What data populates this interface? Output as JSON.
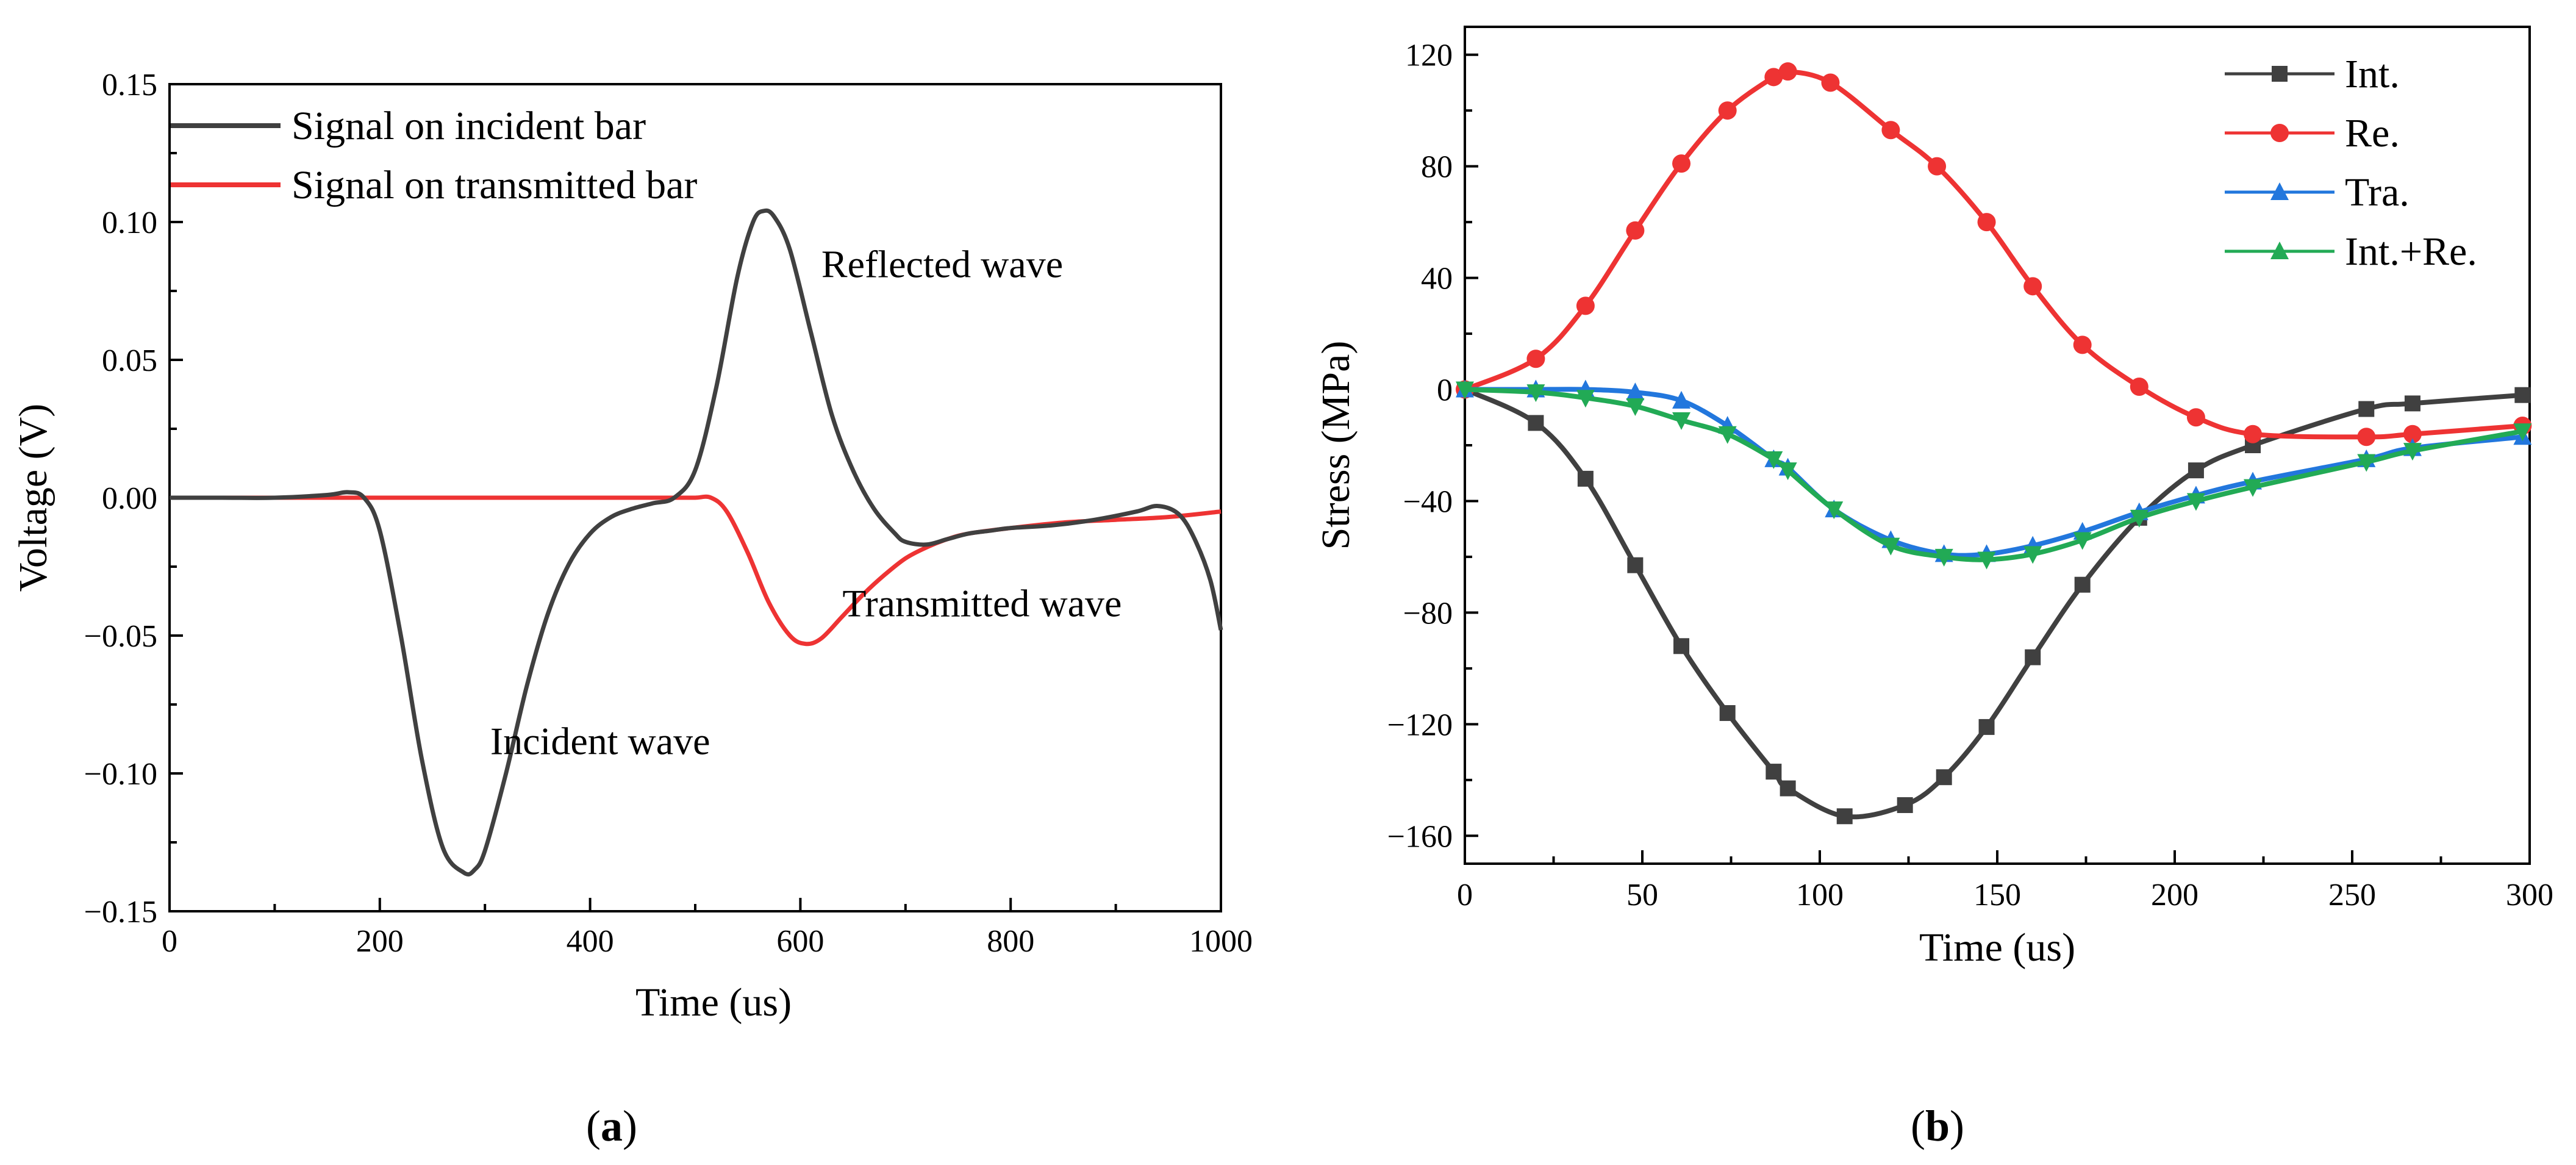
{
  "captions": {
    "a": "a",
    "b": "b"
  },
  "chart_data": [
    {
      "type": "line",
      "panel": "a",
      "xlabel": "Time (us)",
      "ylabel": "Voltage (V)",
      "xlim": [
        0,
        1000
      ],
      "ylim": [
        -0.15,
        0.15
      ],
      "xticks": [
        0,
        200,
        400,
        600,
        800,
        1000
      ],
      "yticks": [
        -0.15,
        -0.1,
        -0.05,
        0.0,
        0.05,
        0.1,
        0.15
      ],
      "xtick_labels": [
        "0",
        "200",
        "400",
        "600",
        "800",
        "1000"
      ],
      "ytick_labels": [
        "−0.15",
        "−0.10",
        "−0.05",
        "0.00",
        "0.05",
        "0.10",
        "0.15"
      ],
      "legend_position": "top-left",
      "series": [
        {
          "name": "Signal on incident bar",
          "color": "#404040",
          "x": [
            0,
            50,
            100,
            150,
            170,
            185,
            200,
            220,
            240,
            260,
            280,
            290,
            300,
            320,
            340,
            360,
            380,
            400,
            420,
            440,
            460,
            480,
            500,
            520,
            540,
            555,
            565,
            575,
            590,
            610,
            630,
            650,
            670,
            690,
            700,
            720,
            740,
            760,
            780,
            800,
            840,
            880,
            920,
            940,
            960,
            975,
            990,
            1000
          ],
          "y": [
            0.0,
            0.0,
            0.0,
            0.001,
            0.002,
            0.0,
            -0.012,
            -0.05,
            -0.095,
            -0.127,
            -0.136,
            -0.135,
            -0.128,
            -0.1,
            -0.068,
            -0.042,
            -0.024,
            -0.013,
            -0.007,
            -0.004,
            -0.002,
            0.0,
            0.01,
            0.04,
            0.08,
            0.1,
            0.104,
            0.102,
            0.09,
            0.06,
            0.03,
            0.01,
            -0.004,
            -0.013,
            -0.016,
            -0.017,
            -0.015,
            -0.013,
            -0.012,
            -0.011,
            -0.01,
            -0.008,
            -0.005,
            -0.003,
            -0.006,
            -0.015,
            -0.03,
            -0.048
          ]
        },
        {
          "name": "Signal on transmitted bar",
          "color": "#ee3333",
          "x": [
            0,
            100,
            200,
            300,
            400,
            480,
            500,
            515,
            530,
            550,
            570,
            590,
            605,
            620,
            640,
            660,
            680,
            700,
            720,
            740,
            760,
            800,
            850,
            900,
            950,
            1000
          ],
          "y": [
            0.0,
            0.0,
            0.0,
            0.0,
            0.0,
            0.0,
            0.0,
            0.0,
            -0.005,
            -0.02,
            -0.038,
            -0.05,
            -0.053,
            -0.051,
            -0.043,
            -0.035,
            -0.028,
            -0.022,
            -0.018,
            -0.015,
            -0.013,
            -0.011,
            -0.009,
            -0.008,
            -0.007,
            -0.005
          ]
        }
      ],
      "annotations": [
        {
          "text": "Reflected wave",
          "x": 620,
          "y": 0.08
        },
        {
          "text": "Transmitted wave",
          "x": 640,
          "y": -0.043
        },
        {
          "text": "Incident wave",
          "x": 305,
          "y": -0.093
        }
      ]
    },
    {
      "type": "line",
      "panel": "b",
      "xlabel": "Time (us)",
      "ylabel": "Stress (MPa)",
      "xlim": [
        0,
        300
      ],
      "ylim": [
        -170,
        130
      ],
      "xticks": [
        0,
        50,
        100,
        150,
        200,
        250,
        300
      ],
      "yticks": [
        -160,
        -120,
        -80,
        -40,
        0,
        40,
        80,
        120
      ],
      "xtick_labels": [
        "0",
        "50",
        "100",
        "150",
        "200",
        "250",
        "300"
      ],
      "ytick_labels": [
        "−160",
        "−120",
        "−80",
        "−40",
        "0",
        "40",
        "80",
        "120"
      ],
      "legend_position": "top-right",
      "series": [
        {
          "name": "Int.",
          "color": "#404040",
          "marker": "square",
          "x": [
            0,
            20,
            34,
            48,
            61,
            74,
            87,
            91,
            107,
            124,
            135,
            147,
            160,
            174,
            190,
            206,
            222,
            254,
            267,
            298
          ],
          "y": [
            0,
            -12,
            -32,
            -63,
            -92,
            -116,
            -137,
            -143,
            -153,
            -149,
            -139,
            -121,
            -96,
            -70,
            -46,
            -29,
            -20,
            -7,
            -5,
            -2
          ]
        },
        {
          "name": "Re.",
          "color": "#ee3333",
          "marker": "circle",
          "x": [
            0,
            20,
            34,
            48,
            61,
            74,
            87,
            91,
            103,
            120,
            133,
            147,
            160,
            174,
            190,
            206,
            222,
            254,
            267,
            298
          ],
          "y": [
            0,
            11,
            30,
            57,
            81,
            100,
            112,
            114,
            110,
            93,
            80,
            60,
            37,
            16,
            1,
            -10,
            -16,
            -17,
            -16,
            -13
          ]
        },
        {
          "name": "Tra.",
          "color": "#2277dd",
          "marker": "triangle-up",
          "x": [
            0,
            20,
            34,
            48,
            61,
            74,
            87,
            91,
            104,
            120,
            135,
            147,
            160,
            174,
            190,
            206,
            222,
            254,
            267,
            298
          ],
          "y": [
            0,
            0,
            0,
            -1,
            -4,
            -13,
            -25,
            -28,
            -43,
            -54,
            -59,
            -59,
            -56,
            -51,
            -44,
            -38,
            -33,
            -25,
            -21,
            -17
          ]
        },
        {
          "name": "Int.+Re.",
          "color": "#22aa55",
          "marker": "triangle-down",
          "x": [
            0,
            20,
            34,
            48,
            61,
            74,
            87,
            91,
            104,
            120,
            135,
            147,
            160,
            174,
            190,
            206,
            222,
            254,
            267,
            298
          ],
          "y": [
            0,
            -1,
            -3,
            -6,
            -11,
            -16,
            -25,
            -29,
            -43,
            -56,
            -60,
            -61,
            -59,
            -54,
            -46,
            -40,
            -35,
            -26,
            -22,
            -15
          ]
        }
      ]
    }
  ]
}
